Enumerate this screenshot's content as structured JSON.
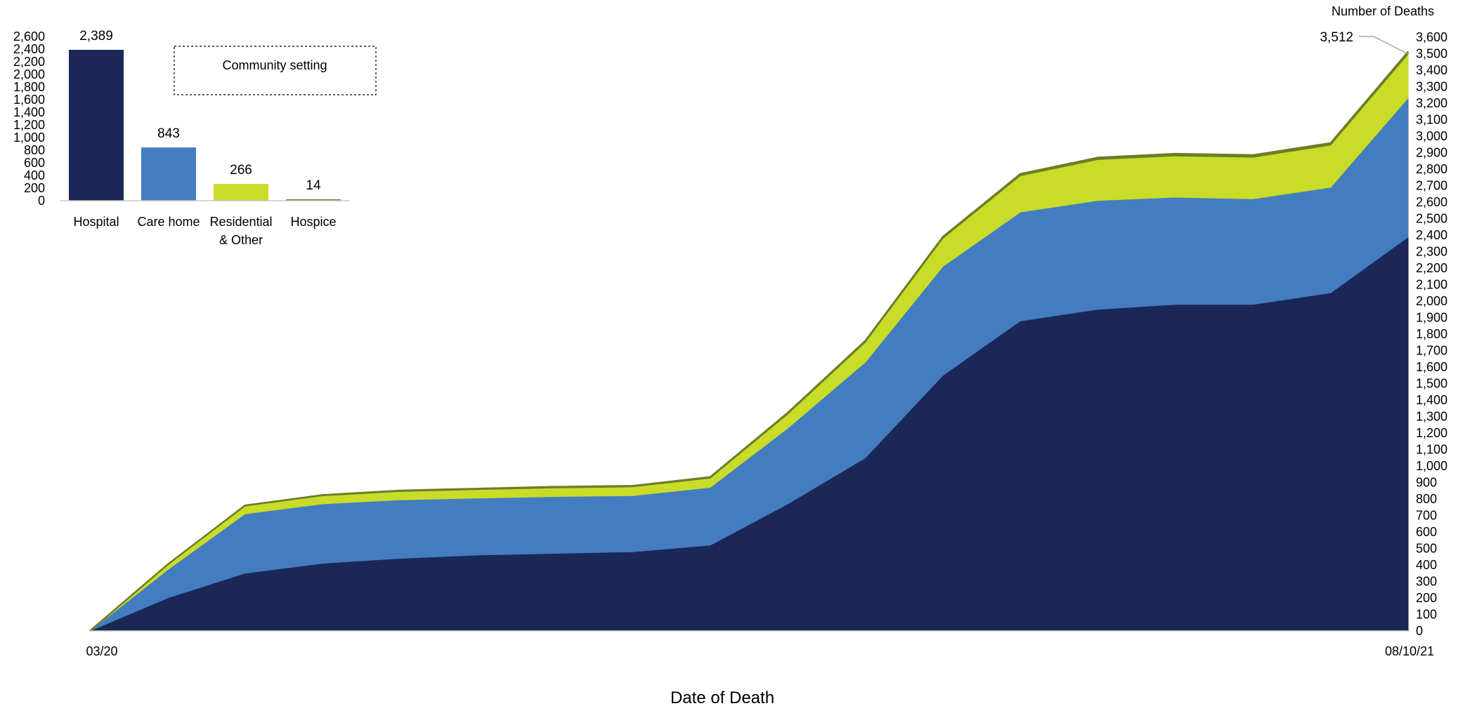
{
  "chart_data": [
    {
      "type": "area",
      "stacked": true,
      "xlabel": "Date of Death",
      "ylabel": "Number of Deaths",
      "x_tick_labels": [
        "03/20",
        "08/10/21"
      ],
      "x": [
        "03/20",
        "04/20",
        "05/20",
        "06/20",
        "07/20",
        "08/20",
        "09/20",
        "10/20",
        "11/20",
        "12/20",
        "01/21",
        "02/21",
        "03/21",
        "04/21",
        "05/21",
        "06/21",
        "07/21",
        "08/10/21"
      ],
      "ylim": [
        0,
        3600
      ],
      "yticks": [
        0,
        100,
        200,
        300,
        400,
        500,
        600,
        700,
        800,
        900,
        1000,
        1100,
        1200,
        1300,
        1400,
        1500,
        1600,
        1700,
        1800,
        1900,
        2000,
        2100,
        2200,
        2300,
        2400,
        2500,
        2600,
        2700,
        2800,
        2900,
        3000,
        3100,
        3200,
        3300,
        3400,
        3500,
        3600
      ],
      "ytick_labels": [
        "0",
        "100",
        "200",
        "300",
        "400",
        "500",
        "600",
        "700",
        "800",
        "900",
        "1,000",
        "1,100",
        "1,200",
        "1,300",
        "1,400",
        "1,500",
        "1,600",
        "1,700",
        "1,800",
        "1,900",
        "2,000",
        "2,100",
        "2,200",
        "2,300",
        "2,400",
        "2,500",
        "2,600",
        "2,700",
        "2,800",
        "2,900",
        "3,000",
        "3,100",
        "3,200",
        "3,300",
        "3,400",
        "3,500",
        "3,600"
      ],
      "y_axis_position": "right",
      "grid": false,
      "series": [
        {
          "name": "Hospital",
          "color": "#1b2757",
          "values": [
            0,
            200,
            350,
            410,
            440,
            460,
            470,
            480,
            520,
            770,
            1050,
            1550,
            1880,
            1950,
            1980,
            1980,
            2050,
            2389
          ]
        },
        {
          "name": "Care home",
          "color": "#437dc0",
          "values": [
            0,
            170,
            360,
            360,
            355,
            345,
            345,
            340,
            350,
            460,
            580,
            660,
            660,
            660,
            650,
            640,
            640,
            843
          ]
        },
        {
          "name": "Residential & Other",
          "color": "#c9dc28",
          "values": [
            0,
            30,
            47,
            49,
            50,
            52,
            52,
            53,
            56,
            85,
            120,
            170,
            220,
            248,
            250,
            252,
            255,
            266
          ]
        },
        {
          "name": "Hospice",
          "color": "#6e7d27",
          "values": [
            0,
            2,
            4,
            5,
            6,
            6,
            7,
            7,
            7,
            8,
            9,
            10,
            11,
            12,
            13,
            13,
            13,
            14
          ]
        }
      ],
      "annotations": [
        {
          "text": "3,512",
          "x": "08/10/21",
          "y": 3512
        }
      ]
    },
    {
      "type": "bar",
      "title": "Community setting",
      "categories": [
        "Hospital",
        "Care home",
        "Residential & Other",
        "Hospice"
      ],
      "category_labels": [
        [
          "Hospital"
        ],
        [
          "Care home"
        ],
        [
          "Residential",
          "& Other"
        ],
        [
          "Hospice"
        ]
      ],
      "values": [
        2389,
        843,
        266,
        14
      ],
      "value_labels": [
        "2,389",
        "843",
        "266",
        "14"
      ],
      "colors": [
        "#1b2757",
        "#437dc0",
        "#c9dc28",
        "#6e7d27"
      ],
      "ylim": [
        0,
        2600
      ],
      "yticks": [
        0,
        200,
        400,
        600,
        800,
        1000,
        1200,
        1400,
        1600,
        1800,
        2000,
        2200,
        2400,
        2600
      ],
      "ytick_labels": [
        "0",
        "200",
        "400",
        "600",
        "800",
        "1,000",
        "1,200",
        "1,400",
        "1,600",
        "1,800",
        "2,000",
        "2,200",
        "2,400",
        "2,600"
      ],
      "grid": false
    }
  ]
}
